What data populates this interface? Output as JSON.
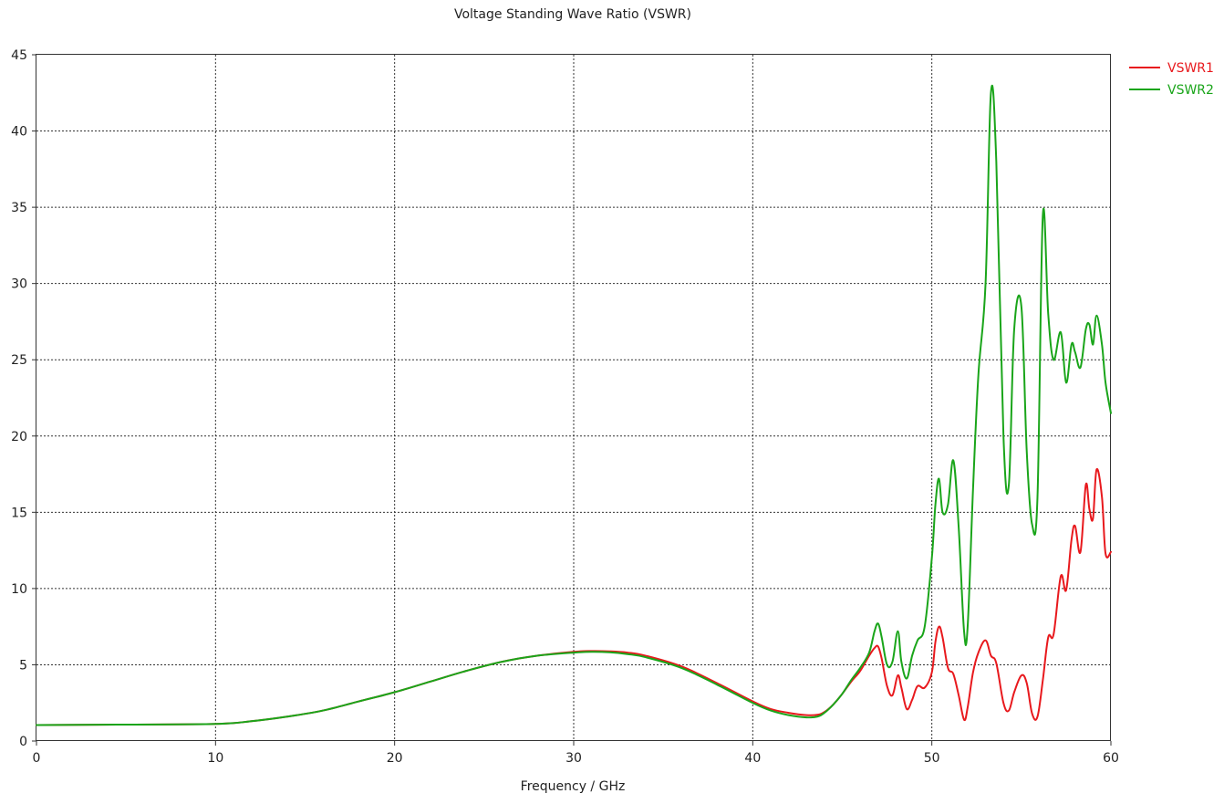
{
  "chart_data": {
    "type": "line",
    "title": "Voltage Standing Wave Ratio (VSWR)",
    "xlabel": "Frequency / GHz",
    "ylabel": "",
    "xlim": [
      0,
      60
    ],
    "ylim": [
      0,
      45
    ],
    "xticks": [
      0,
      10,
      20,
      30,
      40,
      50,
      60
    ],
    "yticks": [
      0,
      5,
      10,
      15,
      20,
      25,
      30,
      35,
      40,
      45
    ],
    "grid": true,
    "legend_position": "top-right (outside plot)",
    "series": [
      {
        "name": "VSWR1",
        "color": "#e8191d",
        "x": [
          0,
          5,
          10,
          12,
          14,
          16,
          18,
          20,
          22,
          24,
          26,
          28,
          30,
          31,
          32,
          33,
          34,
          36,
          38,
          40,
          41,
          42,
          43,
          43.6,
          44,
          44.5,
          45,
          45.5,
          46,
          46.5,
          46.8,
          47,
          47.2,
          47.5,
          47.8,
          48.1,
          48.3,
          48.6,
          48.9,
          49.2,
          49.6,
          50,
          50.2,
          50.4,
          50.6,
          50.9,
          51.2,
          51.5,
          51.8,
          52,
          52.3,
          52.6,
          53,
          53.3,
          53.6,
          54,
          54.3,
          54.6,
          55,
          55.3,
          55.6,
          55.9,
          56.2,
          56.5,
          56.8,
          57.2,
          57.5,
          57.8,
          58,
          58.3,
          58.6,
          58.8,
          59,
          59.2,
          59.5,
          59.7,
          60
        ],
        "y": [
          1.05,
          1.08,
          1.12,
          1.3,
          1.6,
          2.0,
          2.6,
          3.2,
          3.9,
          4.6,
          5.2,
          5.6,
          5.85,
          5.9,
          5.88,
          5.8,
          5.6,
          4.9,
          3.8,
          2.6,
          2.1,
          1.85,
          1.7,
          1.72,
          1.9,
          2.4,
          3.1,
          3.9,
          4.6,
          5.6,
          6.1,
          6.2,
          5.4,
          3.6,
          3.0,
          4.3,
          3.5,
          2.1,
          2.7,
          3.6,
          3.5,
          4.5,
          6.5,
          7.5,
          6.8,
          4.8,
          4.4,
          3.0,
          1.4,
          2.2,
          4.5,
          5.8,
          6.6,
          5.6,
          5.1,
          2.5,
          2.0,
          3.2,
          4.3,
          3.8,
          1.8,
          1.6,
          4.0,
          6.8,
          7.0,
          10.8,
          9.9,
          13.2,
          14.1,
          12.4,
          16.8,
          15.2,
          14.6,
          17.8,
          16.0,
          12.3,
          12.4
        ]
      },
      {
        "name": "VSWR2",
        "color": "#1aa51a",
        "x": [
          0,
          5,
          10,
          12,
          14,
          16,
          18,
          20,
          22,
          24,
          26,
          28,
          30,
          31,
          32,
          33,
          34,
          36,
          38,
          40,
          41,
          42,
          43,
          43.6,
          44,
          44.5,
          45,
          45.5,
          46,
          46.5,
          46.8,
          47,
          47.2,
          47.5,
          47.8,
          48.1,
          48.3,
          48.6,
          48.9,
          49.2,
          49.6,
          50,
          50.2,
          50.4,
          50.6,
          50.9,
          51.2,
          51.5,
          51.8,
          52,
          52.3,
          52.6,
          53,
          53.3,
          53.6,
          54,
          54.3,
          54.6,
          55,
          55.3,
          55.6,
          55.9,
          56.2,
          56.5,
          56.8,
          57.2,
          57.5,
          57.8,
          58,
          58.3,
          58.6,
          58.8,
          59,
          59.2,
          59.5,
          59.7,
          60
        ],
        "y": [
          1.05,
          1.08,
          1.12,
          1.3,
          1.6,
          2.0,
          2.6,
          3.2,
          3.9,
          4.6,
          5.2,
          5.6,
          5.8,
          5.85,
          5.82,
          5.7,
          5.5,
          4.8,
          3.7,
          2.5,
          2.0,
          1.7,
          1.55,
          1.6,
          1.85,
          2.4,
          3.1,
          4.0,
          4.8,
          5.8,
          7.2,
          7.7,
          6.8,
          5.0,
          5.2,
          7.2,
          5.2,
          4.1,
          5.6,
          6.6,
          7.5,
          12.0,
          15.5,
          17.2,
          15.0,
          15.5,
          18.4,
          14.0,
          7.2,
          7.5,
          16.5,
          24.0,
          30.0,
          42.5,
          38.0,
          20.0,
          16.8,
          27.0,
          28.5,
          19.0,
          14.2,
          16.0,
          34.5,
          28.0,
          25.0,
          26.8,
          23.5,
          26.0,
          25.5,
          24.5,
          27.0,
          27.3,
          26.0,
          27.9,
          26.0,
          23.5,
          21.5
        ]
      }
    ]
  }
}
